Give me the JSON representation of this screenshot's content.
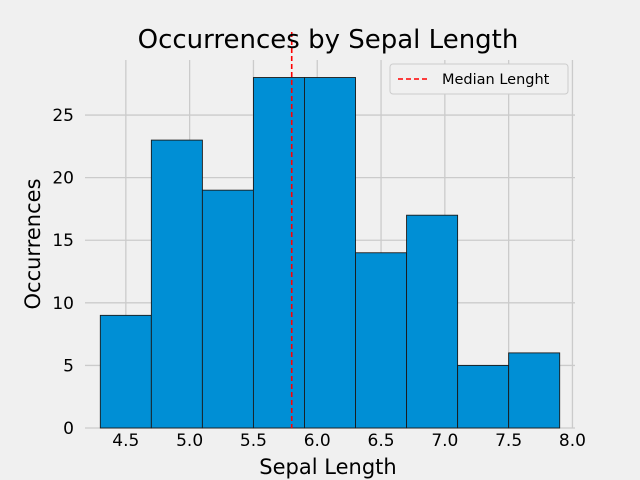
{
  "chart_data": {
    "type": "bar",
    "title": "Occurrences by Sepal Length",
    "xlabel": "Sepal Length",
    "ylabel": "Occurrences",
    "bin_edges": [
      4.3,
      4.7,
      5.1,
      5.5,
      5.9,
      6.3,
      6.7,
      7.1,
      7.5,
      7.9
    ],
    "values": [
      9,
      23,
      19,
      28,
      28,
      14,
      17,
      5,
      6
    ],
    "xticks": [
      "4.5",
      "5.0",
      "5.5",
      "6.0",
      "6.5",
      "7.0",
      "7.5",
      "8.0"
    ],
    "yticks": [
      "0",
      "5",
      "10",
      "15",
      "20",
      "25"
    ],
    "xlim": [
      4.18,
      8.02
    ],
    "ylim": [
      0,
      29.4
    ],
    "median": 5.8,
    "legend": {
      "label": "Median Lenght",
      "position": "top-right"
    },
    "grid": true,
    "colors": {
      "bars": "#008fd5",
      "edge": "#1a1a1a",
      "median_line": "#ff0000",
      "background": "#f0f0f0",
      "grid": "#cbcbcb"
    }
  }
}
